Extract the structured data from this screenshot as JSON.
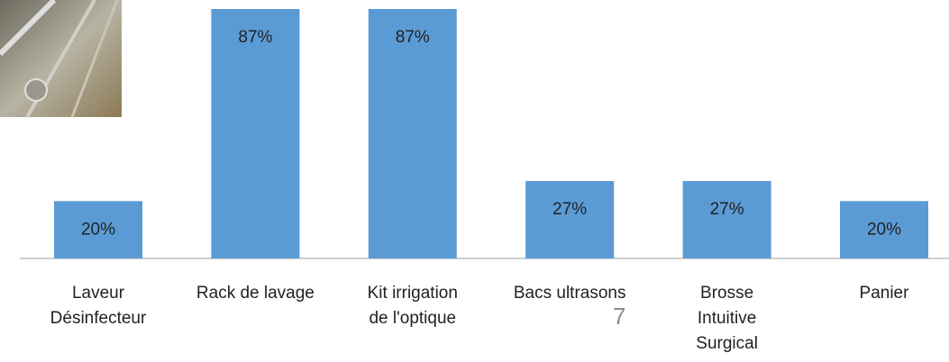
{
  "chart_data": {
    "type": "bar",
    "categories": [
      "Laveur\nDésinfecteur",
      "Rack de lavage",
      "Kit irrigation\nde l'optique",
      "Bacs ultrasons",
      "Brosse\nIntuitive\nSurgical",
      "Panier"
    ],
    "values": [
      20,
      87,
      87,
      27,
      27,
      20
    ],
    "value_labels": [
      "20%",
      "87%",
      "87%",
      "27%",
      "27%",
      "20%"
    ],
    "color": "#5b9bd5"
  },
  "page_number": "7"
}
